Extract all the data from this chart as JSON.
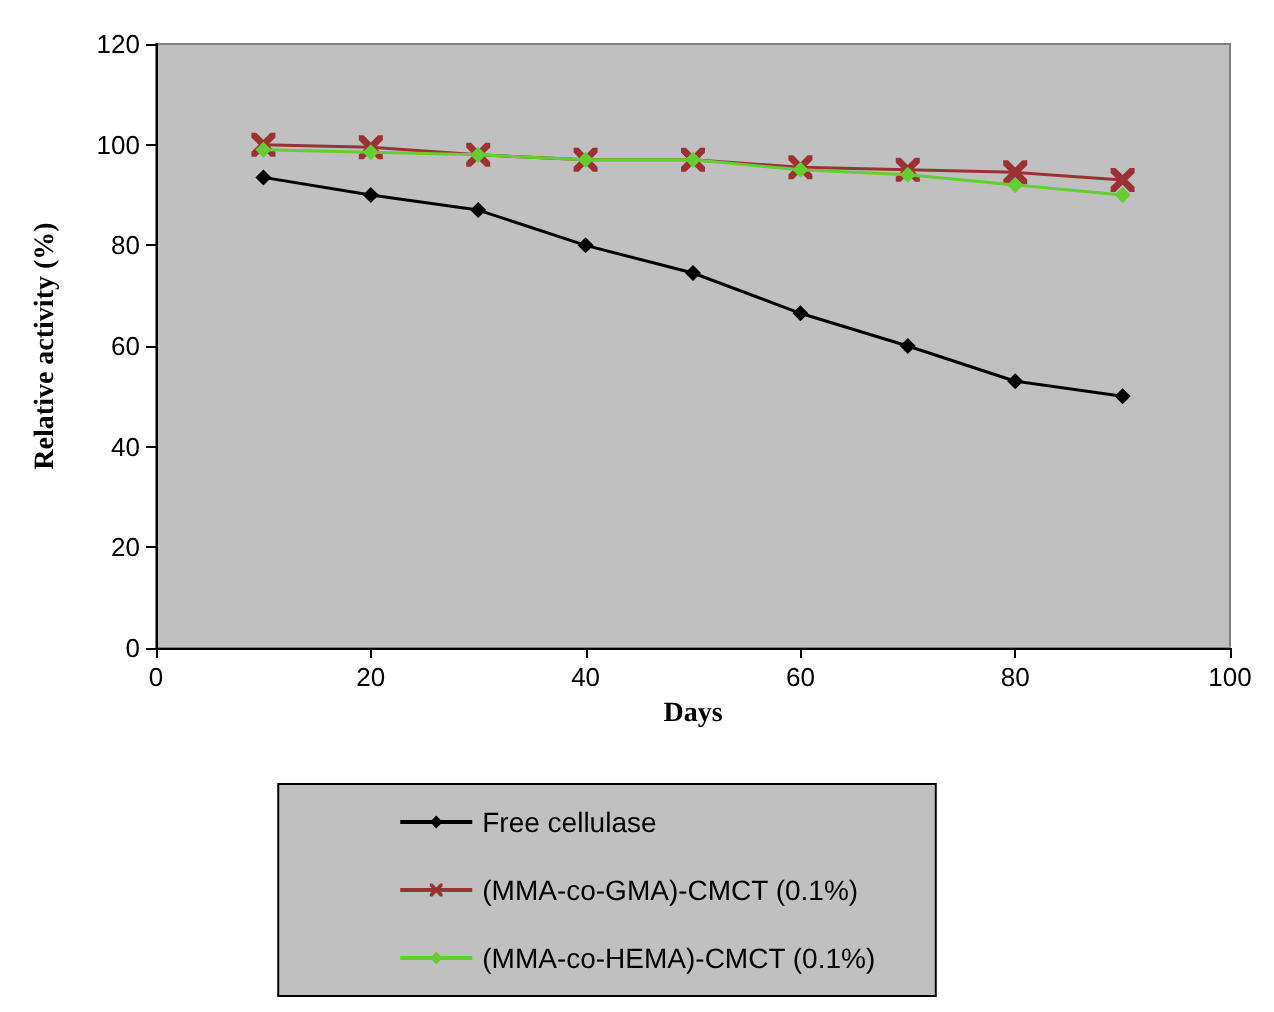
{
  "chart_data": {
    "type": "line",
    "xlabel": "Days",
    "ylabel": "Relative activity (%)",
    "x": [
      10,
      20,
      30,
      40,
      50,
      60,
      70,
      80,
      90
    ],
    "xlim": [
      0,
      100
    ],
    "xticks": [
      0,
      20,
      40,
      60,
      80,
      100
    ],
    "ylim": [
      0,
      120
    ],
    "yticks": [
      0,
      20,
      40,
      60,
      80,
      100,
      120
    ],
    "grid": false,
    "legend": "bottom",
    "series": [
      {
        "name": "Free cellulase",
        "color": "#000000",
        "marker": "diamond",
        "values": [
          93.5,
          90,
          87,
          80,
          74.5,
          66.5,
          60,
          53,
          50
        ]
      },
      {
        "name": "(MMA-co-GMA)-CMCT (0.1%)",
        "color": "#993333",
        "marker": "cross",
        "values": [
          100,
          99.5,
          98,
          97,
          97,
          95.5,
          95,
          94.5,
          93
        ]
      },
      {
        "name": "(MMA-co-HEMA)-CMCT (0.1%)",
        "color": "#66cc33",
        "marker": "diamond",
        "values": [
          99,
          98.5,
          98,
          97,
          97,
          95,
          94,
          92,
          90
        ]
      }
    ]
  }
}
